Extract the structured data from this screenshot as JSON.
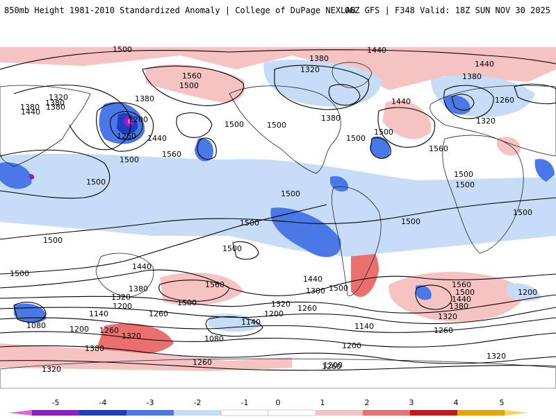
{
  "header": {
    "title_left": "850mb Height 1981-2010 Standardized Anomaly | College of DuPage NEXLAB",
    "title_right": "06Z GFS | F348 Valid: 18Z SUN NOV 30 2025"
  },
  "colors": {
    "m5": "#e066d8",
    "m4": "#8a1ec8",
    "m3": "#1d3fbf",
    "m2": "#4a78e6",
    "m1": "#c6dcf7",
    "zero": "#ffffff",
    "p1": "#f6c3c3",
    "p2": "#ea6f6f",
    "p3": "#c81515",
    "p4": "#e6a500",
    "p5": "#ffd060",
    "land": "#222222",
    "contour": "#000000"
  },
  "legend": {
    "ticks": [
      "-5",
      "-4",
      "-3",
      "-2",
      "-1",
      "0",
      "1",
      "2",
      "3",
      "4",
      "5"
    ]
  },
  "contour_labels": [
    "1500",
    "1380",
    "1320",
    "1440",
    "1380",
    "1500",
    "1500",
    "1560",
    "1500",
    "1380",
    "1200",
    "1380",
    "1260",
    "1440",
    "1500",
    "1560",
    "1500",
    "1500",
    "1500",
    "1440",
    "1320",
    "1380",
    "1440",
    "1380",
    "1500",
    "1500",
    "1560",
    "1440",
    "1380",
    "1320",
    "1260",
    "1500",
    "1500",
    "1500",
    "1500",
    "1500",
    "1500",
    "1500",
    "1500",
    "1440",
    "1380",
    "1320",
    "1200",
    "1080",
    "1140",
    "1200",
    "1260",
    "1500",
    "1560",
    "1440",
    "1380",
    "1320",
    "1260",
    "1200",
    "1140",
    "1080",
    "1380",
    "1320",
    "1260",
    "1320",
    "1200",
    "1140",
    "1260",
    "1200",
    "1560",
    "1500",
    "1440",
    "1380",
    "1320",
    "1260",
    "1200",
    "1320",
    "1260"
  ]
}
